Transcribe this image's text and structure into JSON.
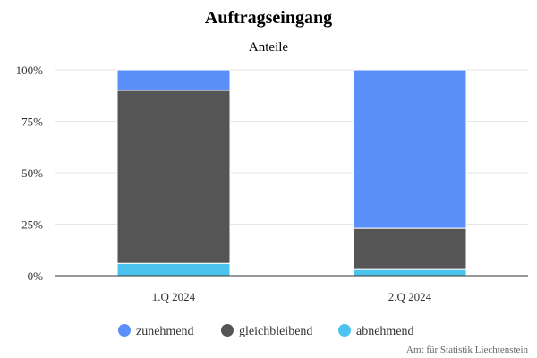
{
  "chart_data": {
    "type": "bar",
    "stacked": true,
    "title": "Auftragseingang",
    "subtitle": "Anteile",
    "categories": [
      "1.Q 2024",
      "2.Q 2024"
    ],
    "series": [
      {
        "name": "abnehmend",
        "color": "#4cc3ee",
        "values": [
          6,
          3
        ]
      },
      {
        "name": "gleichbleibend",
        "color": "#555555",
        "values": [
          84,
          20
        ]
      },
      {
        "name": "zunehmend",
        "color": "#5b8ff9",
        "values": [
          10,
          77
        ]
      }
    ],
    "y_ticks": [
      "0%",
      "25%",
      "50%",
      "75%",
      "100%"
    ],
    "ylim": [
      0,
      100
    ],
    "grid": true,
    "legend_position": "bottom",
    "credit": "Amt für Statistik Liechtenstein"
  }
}
